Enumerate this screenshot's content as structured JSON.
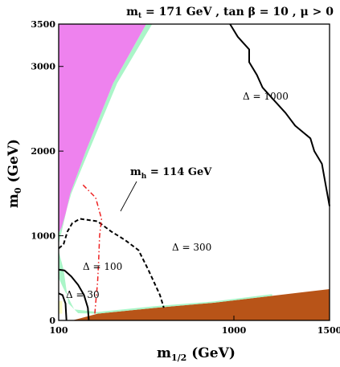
{
  "chart_data": {
    "type": "area",
    "title": "m_t = 171 GeV , tan β = 10 ,  μ > 0",
    "xlabel": "m_1/2 (GeV)",
    "ylabel": "m_0 (GeV)",
    "xlim": [
      100,
      1500
    ],
    "ylim": [
      0,
      3500
    ],
    "x_ticks": [
      100,
      1000,
      1500
    ],
    "y_ticks": [
      0,
      1000,
      2000,
      3000,
      3500
    ],
    "grid": false,
    "colors": {
      "excluded_upper": "#ee82ee",
      "excluded_lower": "#b85418",
      "allowed_band": "#aaf5c8",
      "lep_region": "#ffffc4"
    },
    "regions": [
      {
        "name": "excluded-upper",
        "color": "#ee82ee",
        "points": [
          [
            100,
            900
          ],
          [
            160,
            1500
          ],
          [
            240,
            2000
          ],
          [
            380,
            2800
          ],
          [
            550,
            3500
          ],
          [
            100,
            3500
          ]
        ]
      },
      {
        "name": "excluded-lower",
        "color": "#b85418",
        "points": [
          [
            170,
            0
          ],
          [
            1500,
            0
          ],
          [
            1500,
            370
          ],
          [
            1200,
            290
          ],
          [
            900,
            210
          ],
          [
            600,
            150
          ],
          [
            300,
            80
          ]
        ]
      },
      {
        "name": "coannihilation-band-upper",
        "color": "#aaf5c8",
        "points": [
          [
            100,
            900
          ],
          [
            160,
            1500
          ],
          [
            240,
            2000
          ],
          [
            380,
            2800
          ],
          [
            550,
            3500
          ],
          [
            580,
            3500
          ],
          [
            400,
            2800
          ],
          [
            255,
            2000
          ],
          [
            165,
            1500
          ],
          [
            115,
            1100
          ],
          [
            100,
            1030
          ]
        ]
      },
      {
        "name": "coannihilation-band-lower",
        "color": "#aaf5c8",
        "points": [
          [
            100,
            820
          ],
          [
            125,
            600
          ],
          [
            150,
            200
          ],
          [
            200,
            85
          ],
          [
            300,
            80
          ],
          [
            600,
            150
          ],
          [
            900,
            210
          ],
          [
            1200,
            290
          ],
          [
            1200,
            310
          ],
          [
            900,
            225
          ],
          [
            600,
            170
          ],
          [
            300,
            100
          ],
          [
            180,
            130
          ],
          [
            120,
            400
          ],
          [
            100,
            500
          ]
        ]
      },
      {
        "name": "low-mass-region",
        "color": "#ffffc4",
        "points": [
          [
            100,
            80
          ],
          [
            118,
            80
          ],
          [
            118,
            230
          ],
          [
            100,
            230
          ]
        ]
      }
    ],
    "contours": [
      {
        "name": "Δ = 1000",
        "style": "solid",
        "color": "#000000",
        "points": [
          [
            980,
            3500
          ],
          [
            1020,
            3350
          ],
          [
            1080,
            3200
          ],
          [
            1080,
            3050
          ],
          [
            1120,
            2900
          ],
          [
            1150,
            2750
          ],
          [
            1210,
            2600
          ],
          [
            1270,
            2450
          ],
          [
            1320,
            2300
          ],
          [
            1400,
            2150
          ],
          [
            1420,
            2000
          ],
          [
            1460,
            1850
          ],
          [
            1480,
            1600
          ],
          [
            1500,
            1350
          ]
        ]
      },
      {
        "name": "Δ = 300",
        "style": "dashed",
        "color": "#000000",
        "points": [
          [
            100,
            850
          ],
          [
            125,
            900
          ],
          [
            145,
            1050
          ],
          [
            170,
            1150
          ],
          [
            210,
            1200
          ],
          [
            300,
            1170
          ],
          [
            370,
            1050
          ],
          [
            440,
            950
          ],
          [
            510,
            830
          ],
          [
            560,
            600
          ],
          [
            620,
            300
          ],
          [
            640,
            150
          ]
        ]
      },
      {
        "name": "Δ = 100",
        "style": "solid",
        "color": "#000000",
        "points": [
          [
            100,
            600
          ],
          [
            130,
            590
          ],
          [
            165,
            520
          ],
          [
            200,
            420
          ],
          [
            230,
            300
          ],
          [
            250,
            150
          ],
          [
            255,
            0
          ]
        ]
      },
      {
        "name": "Δ = 30",
        "style": "solid",
        "color": "#000000",
        "points": [
          [
            100,
            320
          ],
          [
            120,
            300
          ],
          [
            135,
            200
          ],
          [
            140,
            0
          ]
        ]
      },
      {
        "name": "m_h = 114 GeV",
        "style": "dashdot",
        "color": "#ee2222",
        "points": [
          [
            225,
            1600
          ],
          [
            290,
            1450
          ],
          [
            320,
            1200
          ],
          [
            310,
            1000
          ],
          [
            305,
            700
          ],
          [
            300,
            450
          ],
          [
            290,
            200
          ],
          [
            285,
            60
          ]
        ]
      }
    ],
    "annotations": [
      {
        "text": "Δ = 1000",
        "x": 1130,
        "y": 2560
      },
      {
        "text": "Δ = 300",
        "x": 565,
        "y": 790
      },
      {
        "text": "Δ = 100",
        "x": 155,
        "y": 570
      },
      {
        "text": "Δ = 30",
        "x": 120,
        "y": 260
      },
      {
        "text": "m_h = 114 GeV",
        "x": 340,
        "y": 1550
      }
    ]
  }
}
